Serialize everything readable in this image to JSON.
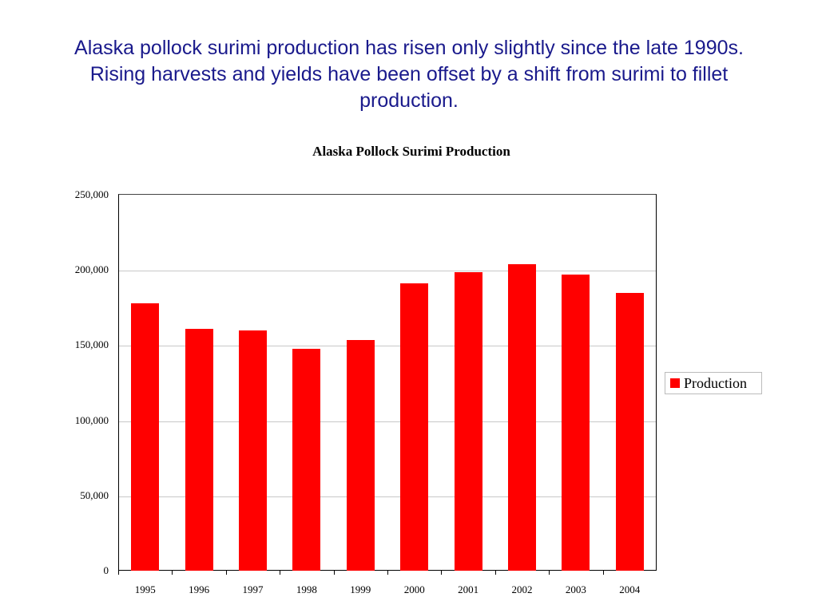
{
  "headline": "Alaska pollock surimi production has risen only slightly since the late 1990s.  Rising harvests and yields have been offset by a shift from surimi to fillet production.",
  "chart_data": {
    "type": "bar",
    "title": "Alaska Pollock Surimi Production",
    "xlabel": "",
    "ylabel": "",
    "categories": [
      "1995",
      "1996",
      "1997",
      "1998",
      "1999",
      "2000",
      "2001",
      "2002",
      "2003",
      "2004"
    ],
    "series": [
      {
        "name": "Production",
        "color": "#ff0000",
        "values": [
          178000,
          161000,
          160000,
          147500,
          153500,
          191000,
          198500,
          204000,
          197000,
          184500
        ]
      }
    ],
    "ylim": [
      0,
      250000
    ],
    "yticks": [
      "0",
      "50,000",
      "100,000",
      "150,000",
      "200,000",
      "250,000"
    ],
    "grid": true,
    "legend_position": "right"
  }
}
